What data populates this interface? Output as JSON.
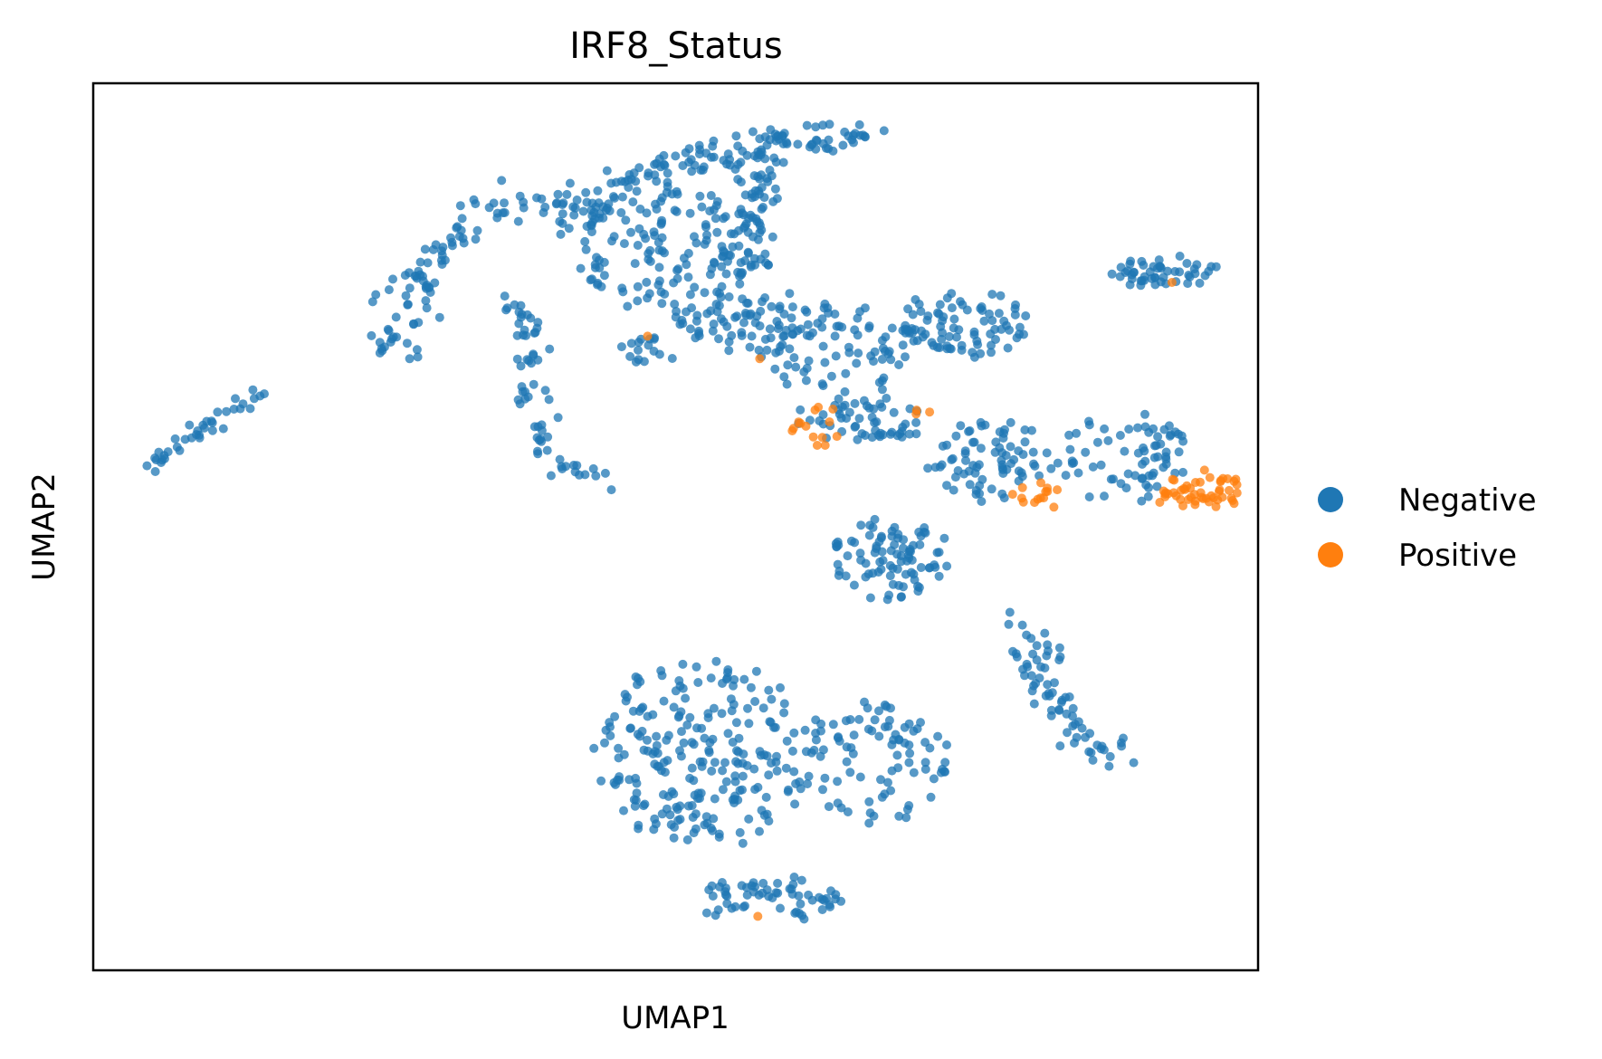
{
  "chart_data": {
    "type": "scatter",
    "title": "IRF8_Status",
    "xlabel": "UMAP1",
    "ylabel": "UMAP2",
    "xlim": [
      0,
      100
    ],
    "ylim": [
      0,
      100
    ],
    "grid": false,
    "ticks": false,
    "legend": {
      "placement": "right",
      "entries": [
        {
          "name": "Negative",
          "color": "#1f77b4"
        },
        {
          "name": "Positive",
          "color": "#ff7f0e"
        }
      ]
    },
    "series": [
      {
        "name": "Negative",
        "color": "#1f77b4",
        "clusters": [
          {
            "type": "line",
            "from": [
              4.5,
              56.5
            ],
            "to": [
              15.5,
              66.5
            ],
            "n": 38,
            "spread": 0.45,
            "seed": 11
          },
          {
            "type": "curve",
            "points": [
              [
                25.5,
                70
              ],
              [
                27.5,
                77
              ],
              [
                31,
                83
              ],
              [
                36,
                86.5
              ],
              [
                40,
                87.5
              ],
              [
                43,
                85.5
              ]
            ],
            "n": 110,
            "spread": 1.1,
            "seed": 12
          },
          {
            "type": "curve",
            "points": [
              [
                36.5,
                75.5
              ],
              [
                37.5,
                70
              ],
              [
                37.5,
                65
              ],
              [
                38.5,
                59
              ],
              [
                41,
                56
              ],
              [
                44,
                55
              ]
            ],
            "n": 65,
            "spread": 0.9,
            "seed": 13
          },
          {
            "type": "curve",
            "points": [
              [
                41,
                84
              ],
              [
                45,
                88.5
              ],
              [
                50,
                91
              ],
              [
                55,
                92.5
              ],
              [
                60,
                93.5
              ],
              [
                65,
                94.5
              ],
              [
                66.5,
                94
              ]
            ],
            "n": 120,
            "spread": 0.9,
            "seed": 14
          },
          {
            "type": "blob",
            "cx": 50,
            "cy": 81,
            "rx": 8.5,
            "ry": 7.5,
            "n": 150,
            "seed": 15
          },
          {
            "type": "curve",
            "points": [
              [
                57,
                93
              ],
              [
                57.5,
                88
              ],
              [
                56.5,
                83
              ],
              [
                55.5,
                78
              ]
            ],
            "n": 60,
            "spread": 1.1,
            "seed": 16
          },
          {
            "type": "blob",
            "cx": 57,
            "cy": 73,
            "rx": 7.5,
            "ry": 3.8,
            "n": 70,
            "seed": 17
          },
          {
            "type": "blob",
            "cx": 47.5,
            "cy": 70,
            "rx": 2.2,
            "ry": 1.8,
            "n": 16,
            "seed": 18
          },
          {
            "type": "blob",
            "cx": 64,
            "cy": 70,
            "rx": 7,
            "ry": 5,
            "n": 70,
            "seed": 19
          },
          {
            "type": "blob",
            "cx": 66,
            "cy": 62,
            "rx": 5.5,
            "ry": 2.6,
            "n": 55,
            "seed": 20
          },
          {
            "type": "blob",
            "cx": 75,
            "cy": 73,
            "rx": 6,
            "ry": 3.8,
            "n": 80,
            "seed": 21
          },
          {
            "type": "blob",
            "cx": 77,
            "cy": 57.5,
            "rx": 5.5,
            "ry": 4.5,
            "n": 75,
            "seed": 22
          },
          {
            "type": "blob",
            "cx": 88.5,
            "cy": 57.5,
            "rx": 6,
            "ry": 5,
            "n": 70,
            "seed": 23
          },
          {
            "type": "blob",
            "cx": 92,
            "cy": 78.5,
            "rx": 4.8,
            "ry": 1.4,
            "n": 50,
            "seed": 24
          },
          {
            "type": "blob",
            "cx": 68.5,
            "cy": 46.5,
            "rx": 5.2,
            "ry": 4.5,
            "n": 90,
            "seed": 25
          },
          {
            "type": "curve",
            "points": [
              [
                79,
                38.5
              ],
              [
                80.5,
                36.5
              ],
              [
                81.5,
                33
              ],
              [
                84.5,
                27
              ],
              [
                88,
                23
              ]
            ],
            "n": 70,
            "spread": 1.3,
            "seed": 26
          },
          {
            "type": "blob",
            "cx": 52.5,
            "cy": 24.5,
            "rx": 9.5,
            "ry": 10.5,
            "n": 230,
            "seed": 27
          },
          {
            "type": "blob",
            "cx": 67,
            "cy": 23.5,
            "rx": 6.5,
            "ry": 7,
            "n": 90,
            "seed": 28
          },
          {
            "type": "blob",
            "cx": 58,
            "cy": 8,
            "rx": 6.5,
            "ry": 2.5,
            "n": 60,
            "seed": 29
          }
        ]
      },
      {
        "name": "Positive",
        "color": "#ff7f0e",
        "clusters": [
          {
            "type": "blob",
            "cx": 95,
            "cy": 54,
            "rx": 3.8,
            "ry": 1.8,
            "n": 50,
            "seed": 31
          },
          {
            "type": "blob",
            "cx": 81,
            "cy": 53.8,
            "rx": 2.2,
            "ry": 1.5,
            "n": 14,
            "seed": 32
          },
          {
            "type": "blob",
            "cx": 62,
            "cy": 61.5,
            "rx": 2.6,
            "ry": 2,
            "n": 14,
            "seed": 33
          },
          {
            "type": "blob",
            "cx": 72,
            "cy": 63,
            "rx": 1.4,
            "ry": 0.6,
            "n": 3,
            "seed": 34
          },
          {
            "type": "blob",
            "cx": 56.5,
            "cy": 69,
            "rx": 0.8,
            "ry": 0.8,
            "n": 1,
            "seed": 35
          },
          {
            "type": "blob",
            "cx": 47,
            "cy": 71.5,
            "rx": 0.4,
            "ry": 0.4,
            "n": 1,
            "seed": 36
          },
          {
            "type": "blob",
            "cx": 57.5,
            "cy": 6.5,
            "rx": 0.4,
            "ry": 0.4,
            "n": 1,
            "seed": 37
          },
          {
            "type": "blob",
            "cx": 92.5,
            "cy": 78,
            "rx": 0.4,
            "ry": 0.4,
            "n": 1,
            "seed": 38
          }
        ]
      }
    ]
  }
}
